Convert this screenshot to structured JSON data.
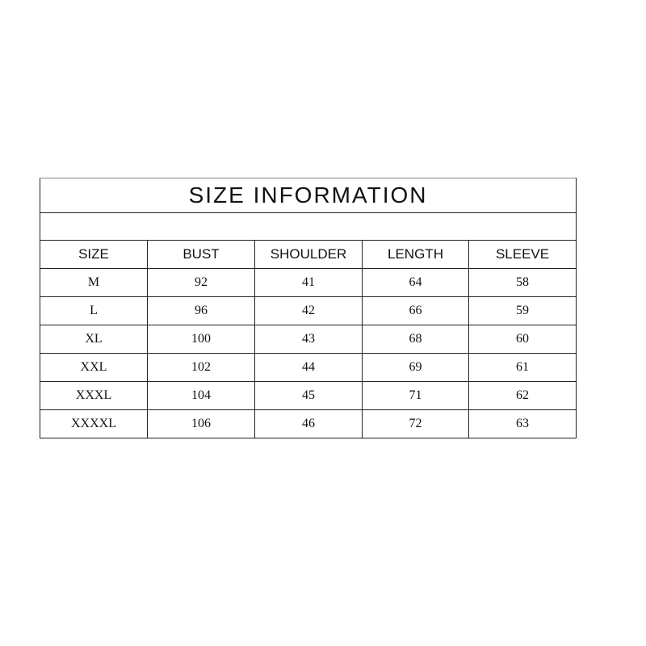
{
  "title": "SIZE INFORMATION",
  "columns": [
    "SIZE",
    "BUST",
    "SHOULDER",
    "LENGTH",
    "SLEEVE"
  ],
  "rows": [
    [
      "M",
      "92",
      "41",
      "64",
      "58"
    ],
    [
      "L",
      "96",
      "42",
      "66",
      "59"
    ],
    [
      "XL",
      "100",
      "43",
      "68",
      "60"
    ],
    [
      "XXL",
      "102",
      "44",
      "69",
      "61"
    ],
    [
      "XXXL",
      "104",
      "45",
      "71",
      "62"
    ],
    [
      "XXXXL",
      "106",
      "46",
      "72",
      "63"
    ]
  ]
}
